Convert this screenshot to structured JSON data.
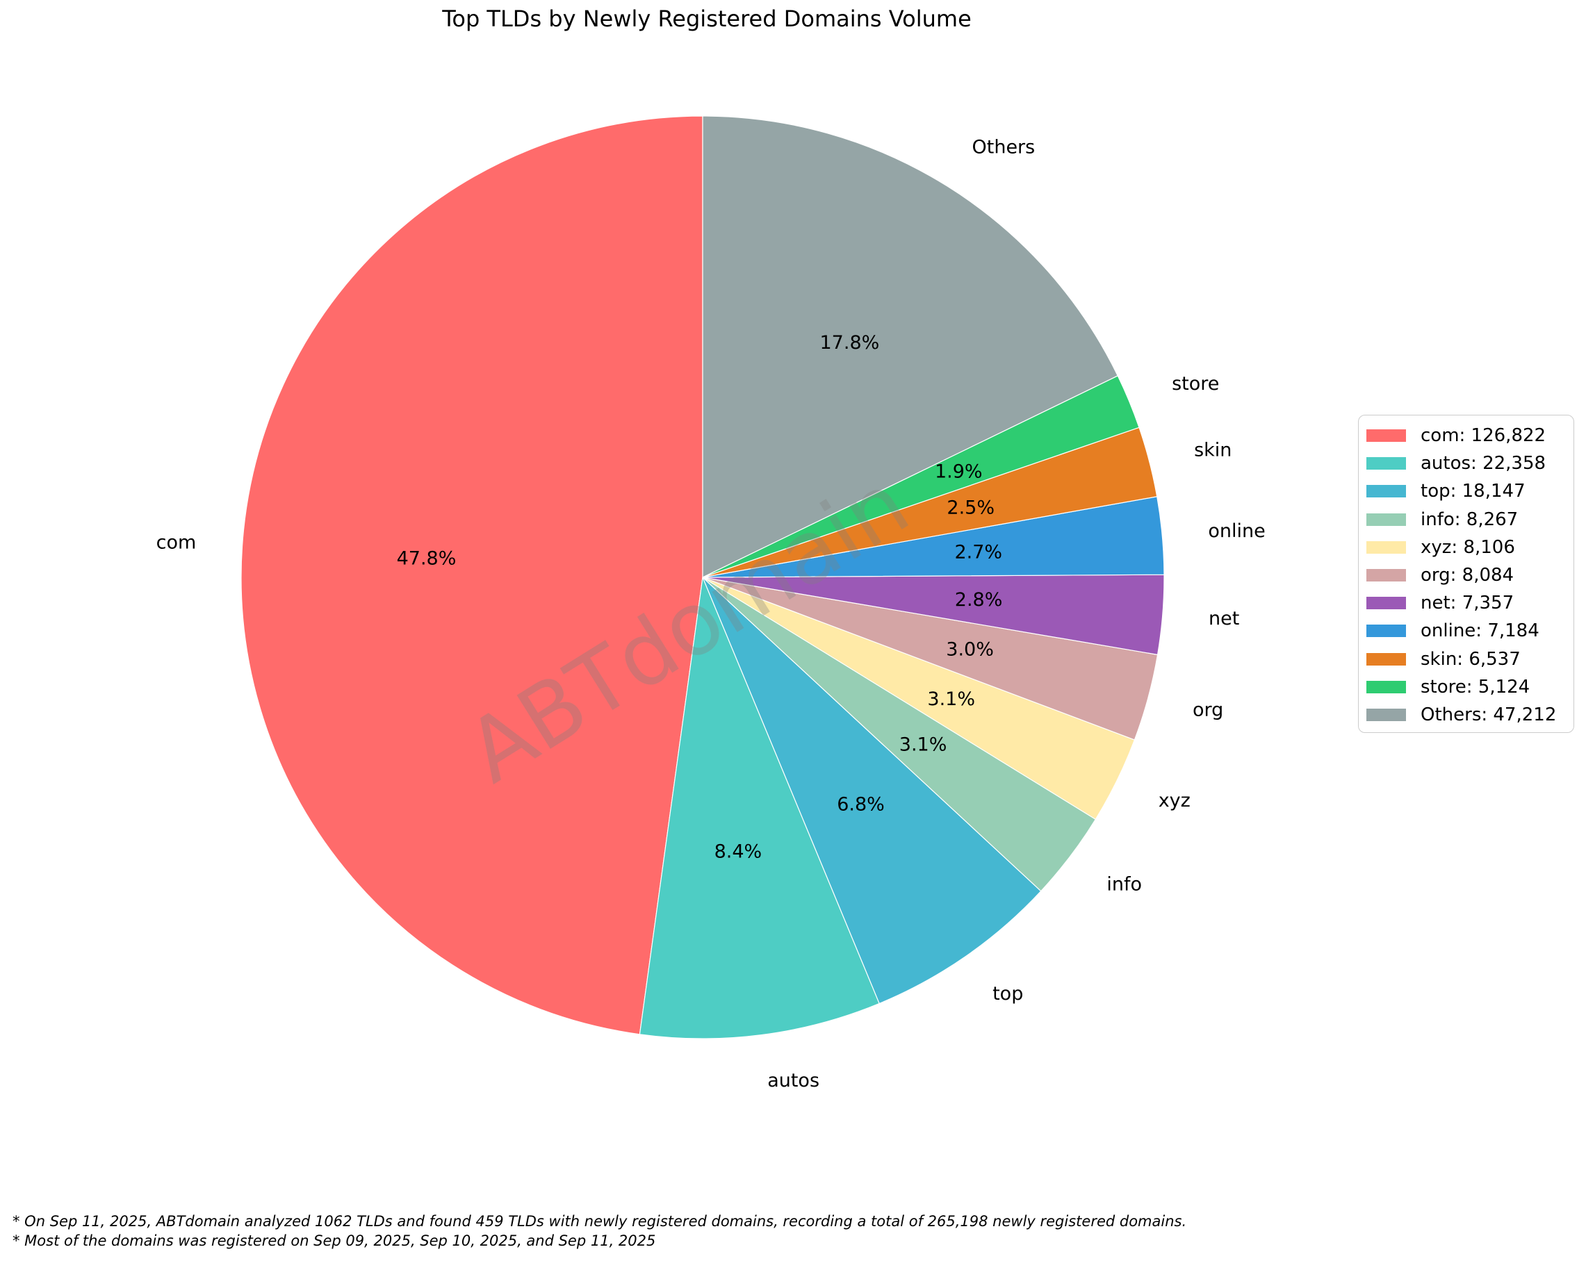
{
  "title": "Top TLDs by Newly Registered Domains Volume",
  "watermark": "ABTdomain",
  "footnotes": {
    "line1": "* On Sep 11, 2025, ABTdomain analyzed 1062 TLDs and found 459 TLDs with newly registered domains, recording a total of 265,198 newly registered domains.",
    "line2": "* Most of the domains was registered on Sep 09, 2025, Sep 10, 2025, and Sep 11, 2025"
  },
  "chart_data": {
    "type": "pie",
    "title": "Top TLDs by Newly Registered Domains Volume",
    "categories": [
      "com",
      "autos",
      "top",
      "info",
      "xyz",
      "org",
      "net",
      "online",
      "skin",
      "store",
      "Others"
    ],
    "values": [
      126822,
      22358,
      18147,
      8267,
      8106,
      8084,
      7357,
      7184,
      6537,
      5124,
      47212
    ],
    "percent_labels": [
      "47.8%",
      "8.4%",
      "6.8%",
      "3.1%",
      "3.1%",
      "3.0%",
      "2.8%",
      "2.7%",
      "2.5%",
      "1.9%",
      "17.8%"
    ],
    "colors": [
      "#FF6B6B",
      "#4ECDC4",
      "#45B7D1",
      "#96CEB4",
      "#FFEAA7",
      "#D4A5A5",
      "#9B59B6",
      "#3498DB",
      "#E67E22",
      "#2ECC71",
      "#95A5A6"
    ],
    "legend_labels": [
      "com: 126,822",
      "autos: 22,358",
      "top: 18,147",
      "info: 8,267",
      "xyz: 8,106",
      "org: 8,084",
      "net: 7,357",
      "online: 7,184",
      "skin: 6,537",
      "store: 5,124",
      "Others: 47,212"
    ],
    "total": 265198,
    "start_angle": 90,
    "direction": "counterclockwise",
    "label_distance": 1.1,
    "pct_distance": 0.6,
    "legend_position": "right",
    "grid": false
  }
}
